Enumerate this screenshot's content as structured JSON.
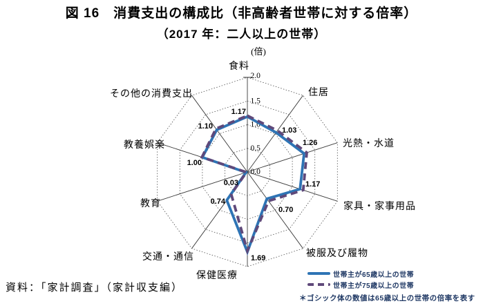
{
  "title": {
    "line1": "図 16　消費支出の構成比（非高齢者世帯に対する倍率）",
    "line2": "（2017 年：二人以上の世帯）"
  },
  "source_note": "資料：「家計調査」（家計収支編）",
  "footnote": "＊ゴシック体の数値は65歳以上の世帯の倍率を表す",
  "chart_data": {
    "type": "radar",
    "unit_label": "(倍)",
    "axis_max": 2.0,
    "ticks": [
      0.0,
      0.5,
      1.0,
      1.5,
      2.0
    ],
    "tick_labels": [
      "0.0",
      "0.5",
      "1.0",
      "1.5",
      "2.0"
    ],
    "grid": "dotted-decagon-rings, solid spokes",
    "categories": [
      "食料",
      "住居",
      "光熱・水道",
      "家具・家事用品",
      "被服及び履物",
      "保健医療",
      "交通・通信",
      "教育",
      "教養娯楽",
      "その他の消費支出"
    ],
    "series": [
      {
        "name": "世帯主が65歳以上の世帯",
        "style": "solid",
        "color": "#2E74B5",
        "values": [
          1.17,
          1.03,
          1.26,
          1.17,
          0.7,
          1.69,
          0.74,
          0.03,
          1.0,
          1.1
        ]
      },
      {
        "name": "世帯主が75歳以上の世帯",
        "style": "dashed",
        "color": "#5F497A",
        "values": [
          1.19,
          1.08,
          1.32,
          1.24,
          0.76,
          1.67,
          0.58,
          0.02,
          1.01,
          1.13
        ]
      }
    ],
    "value_labels": [
      "1.17",
      "1.03",
      "1.26",
      "1.17",
      "0.70",
      "1.69",
      "0.74",
      "0.03",
      "1.00",
      "1.10"
    ],
    "legend_position": "bottom-right"
  },
  "legend": {
    "items": [
      {
        "label": "世帯主が65歳以上の世帯",
        "color": "#2E74B5",
        "style": "solid"
      },
      {
        "label": "世帯主が75歳以上の世帯",
        "color": "#5F497A",
        "style": "dashed"
      }
    ]
  },
  "colors": {
    "background": "#ffffff",
    "grid": "#4a4a4a",
    "text": "#000000",
    "note_text": "#1F3864",
    "series_65plus": "#2E74B5",
    "series_75plus": "#5F497A"
  }
}
